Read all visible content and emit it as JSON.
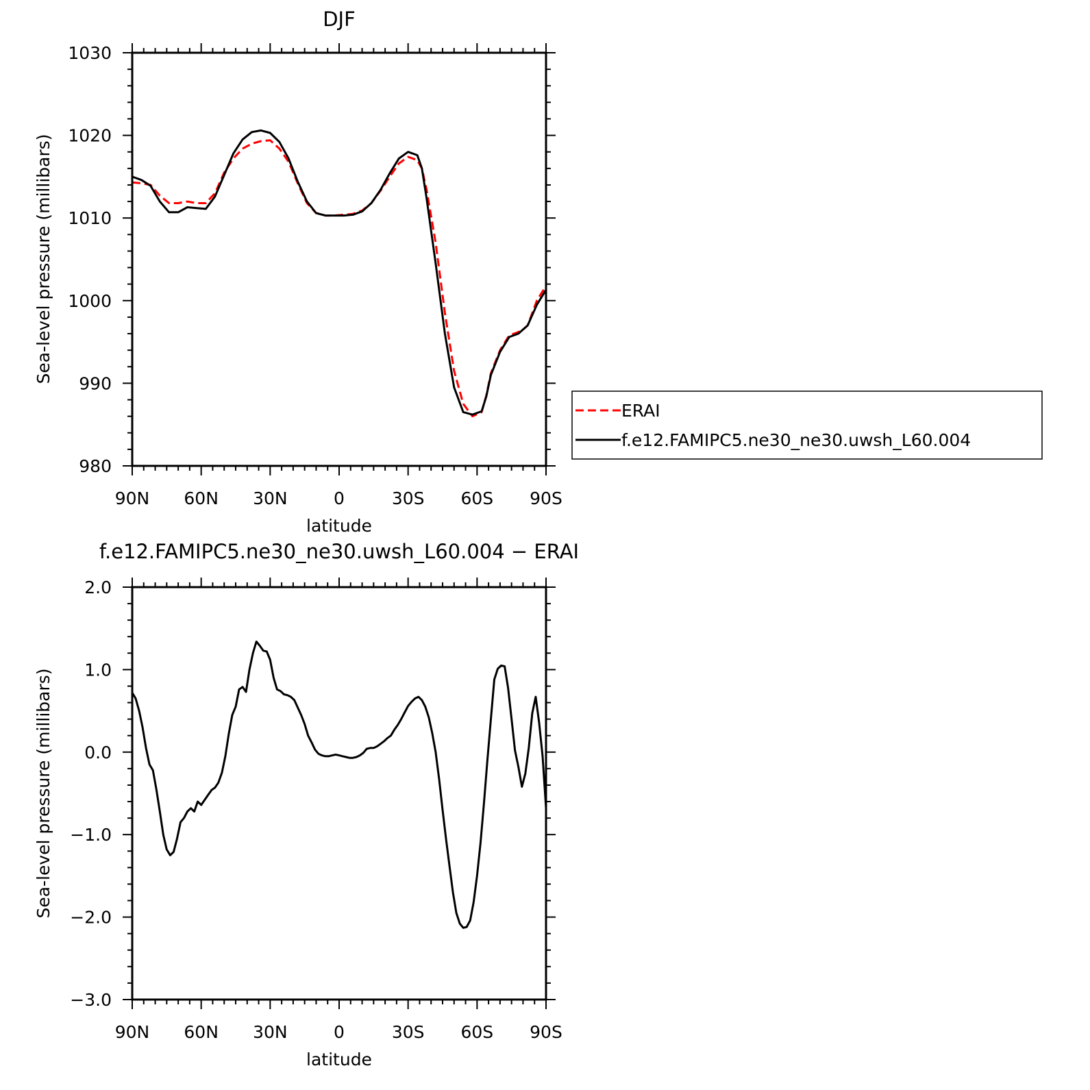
{
  "chart_data": [
    {
      "type": "line",
      "title": "DJF",
      "xlabel": "latitude",
      "ylabel": "Sea-level pressure (millibars)",
      "xlim": [
        90,
        -90
      ],
      "ylim": [
        980,
        1030
      ],
      "xticks": [
        {
          "value": 90,
          "label": "90N"
        },
        {
          "value": 60,
          "label": "60N"
        },
        {
          "value": 30,
          "label": "30N"
        },
        {
          "value": 0,
          "label": "0"
        },
        {
          "value": -30,
          "label": "30S"
        },
        {
          "value": -60,
          "label": "60S"
        },
        {
          "value": -90,
          "label": "90S"
        }
      ],
      "yticks": [
        {
          "value": 980,
          "label": "980"
        },
        {
          "value": 990,
          "label": "990"
        },
        {
          "value": 1000,
          "label": "1000"
        },
        {
          "value": 1010,
          "label": "1010"
        },
        {
          "value": 1020,
          "label": "1020"
        },
        {
          "value": 1030,
          "label": "1030"
        }
      ],
      "legend_position": "right",
      "series": [
        {
          "name": "ERAI",
          "color": "#ff0000",
          "style": "dashed",
          "x": [
            90,
            86,
            82,
            78,
            74,
            70,
            66,
            62,
            58,
            54,
            50,
            46,
            42,
            38,
            34,
            30,
            26,
            22,
            18,
            14,
            10,
            6,
            2,
            -2,
            -6,
            -10,
            -14,
            -18,
            -22,
            -26,
            -30,
            -34,
            -36,
            -38,
            -42,
            -46,
            -50,
            -54,
            -58,
            -62,
            -64,
            -66,
            -70,
            -74,
            -78,
            -80,
            -82,
            -86,
            -90
          ],
          "y": [
            1014.3,
            1014.2,
            1014.0,
            1012.7,
            1011.8,
            1011.8,
            1012.0,
            1011.8,
            1011.8,
            1013.0,
            1015.5,
            1017.2,
            1018.4,
            1019.0,
            1019.3,
            1019.4,
            1018.4,
            1016.8,
            1014.2,
            1011.8,
            1010.6,
            1010.3,
            1010.3,
            1010.4,
            1010.5,
            1010.9,
            1011.8,
            1013.3,
            1015.0,
            1016.6,
            1017.4,
            1017.0,
            1016.0,
            1013.5,
            1007.0,
            998.5,
            991.5,
            987.5,
            986.0,
            986.5,
            988.5,
            991.2,
            994.0,
            995.8,
            996.2,
            996.5,
            997.0,
            1000.0,
            1001.8
          ]
        },
        {
          "name": "f.e12.FAMIPC5.ne30_ne30.uwsh_L60.004",
          "color": "#000000",
          "style": "solid",
          "x": [
            90,
            86,
            82,
            78,
            74,
            70,
            66,
            62,
            58,
            54,
            50,
            46,
            42,
            38,
            34,
            30,
            26,
            22,
            18,
            14,
            10,
            6,
            2,
            -2,
            -6,
            -10,
            -14,
            -18,
            -22,
            -26,
            -30,
            -34,
            -36,
            -38,
            -42,
            -46,
            -50,
            -54,
            -58,
            -62,
            -64,
            -66,
            -70,
            -74,
            -78,
            -80,
            -82,
            -86,
            -90
          ],
          "y": [
            1015.0,
            1014.6,
            1013.9,
            1012.0,
            1010.7,
            1010.7,
            1011.3,
            1011.2,
            1011.1,
            1012.6,
            1015.2,
            1017.8,
            1019.5,
            1020.4,
            1020.6,
            1020.3,
            1019.2,
            1017.2,
            1014.4,
            1012.0,
            1010.6,
            1010.3,
            1010.3,
            1010.3,
            1010.4,
            1010.8,
            1011.8,
            1013.4,
            1015.4,
            1017.2,
            1018.0,
            1017.6,
            1016.0,
            1012.5,
            1004.5,
            996.0,
            989.5,
            986.5,
            986.2,
            986.6,
            988.4,
            991.0,
            993.8,
            995.6,
            996.0,
            996.5,
            997.0,
            999.5,
            1001.3
          ]
        }
      ]
    },
    {
      "type": "line",
      "title": "f.e12.FAMIPC5.ne30_ne30.uwsh_L60.004 − ERAI",
      "xlabel": "latitude",
      "ylabel": "Sea-level pressure (millibars)",
      "xlim": [
        90,
        -90
      ],
      "ylim": [
        -3.0,
        2.0
      ],
      "xticks": [
        {
          "value": 90,
          "label": "90N"
        },
        {
          "value": 60,
          "label": "60N"
        },
        {
          "value": 30,
          "label": "30N"
        },
        {
          "value": 0,
          "label": "0"
        },
        {
          "value": -30,
          "label": "30S"
        },
        {
          "value": -60,
          "label": "60S"
        },
        {
          "value": -90,
          "label": "90S"
        }
      ],
      "yticks": [
        {
          "value": -3.0,
          "label": "−3.0"
        },
        {
          "value": -2.0,
          "label": "−2.0"
        },
        {
          "value": -1.0,
          "label": "−1.0"
        },
        {
          "value": 0.0,
          "label": "0.0"
        },
        {
          "value": 1.0,
          "label": "1.0"
        },
        {
          "value": 2.0,
          "label": "2.0"
        }
      ],
      "series": [
        {
          "color": "#000000",
          "style": "solid",
          "x": [
            90,
            88.5,
            87,
            85.5,
            84,
            82.5,
            81,
            79.5,
            78,
            76.5,
            75,
            73.5,
            72,
            70.5,
            69,
            67.5,
            66,
            64.5,
            63,
            61.5,
            60,
            58.5,
            57,
            55.5,
            54,
            52.5,
            51,
            49.5,
            48,
            46.5,
            45,
            43.5,
            42,
            40.5,
            39,
            37.5,
            36,
            34.5,
            33,
            31.5,
            30,
            28.5,
            27,
            25.5,
            24,
            22.5,
            21,
            19.5,
            18,
            16.5,
            15,
            13.5,
            12,
            10.5,
            9,
            7.5,
            6,
            4.5,
            3,
            1.5,
            0,
            -1.5,
            -3,
            -4.5,
            -6,
            -7.5,
            -9,
            -10.5,
            -12,
            -13.5,
            -15,
            -16.5,
            -18,
            -19.5,
            -21,
            -22.5,
            -24,
            -25.5,
            -27,
            -28.5,
            -30,
            -31.5,
            -33,
            -34.5,
            -36,
            -37.5,
            -39,
            -40.5,
            -42,
            -43.5,
            -45,
            -46.5,
            -48,
            -49.5,
            -51,
            -52.5,
            -54,
            -55.5,
            -57,
            -58.5,
            -60,
            -61.5,
            -63,
            -64.5,
            -66,
            -67.5,
            -69,
            -70.5,
            -72,
            -73.5,
            -75,
            -76.5,
            -78,
            -79.5,
            -81,
            -82.5,
            -84,
            -85.5,
            -87,
            -88.5,
            -90
          ],
          "y": [
            0.72,
            0.65,
            0.5,
            0.3,
            0.05,
            -0.15,
            -0.22,
            -0.45,
            -0.72,
            -1.0,
            -1.18,
            -1.25,
            -1.21,
            -1.05,
            -0.85,
            -0.8,
            -0.72,
            -0.68,
            -0.72,
            -0.6,
            -0.64,
            -0.58,
            -0.52,
            -0.46,
            -0.43,
            -0.37,
            -0.25,
            -0.05,
            0.22,
            0.45,
            0.55,
            0.76,
            0.79,
            0.73,
            1.0,
            1.2,
            1.34,
            1.29,
            1.23,
            1.22,
            1.12,
            0.9,
            0.76,
            0.74,
            0.7,
            0.69,
            0.67,
            0.63,
            0.54,
            0.45,
            0.34,
            0.2,
            0.12,
            0.03,
            -0.02,
            -0.04,
            -0.05,
            -0.05,
            -0.04,
            -0.03,
            -0.04,
            -0.05,
            -0.06,
            -0.07,
            -0.07,
            -0.06,
            -0.04,
            -0.01,
            0.04,
            0.05,
            0.05,
            0.07,
            0.1,
            0.13,
            0.17,
            0.2,
            0.27,
            0.33,
            0.4,
            0.48,
            0.56,
            0.61,
            0.65,
            0.67,
            0.63,
            0.55,
            0.42,
            0.23,
            0.0,
            -0.33,
            -0.7,
            -1.05,
            -1.38,
            -1.7,
            -1.95,
            -2.08,
            -2.13,
            -2.12,
            -2.04,
            -1.82,
            -1.5,
            -1.1,
            -0.62,
            -0.1,
            0.4,
            0.88,
            1.01,
            1.05,
            1.04,
            0.78,
            0.4,
            0.02,
            -0.18,
            -0.42,
            -0.26,
            0.05,
            0.47,
            0.67,
            0.36,
            -0.05,
            -0.68
          ]
        }
      ]
    }
  ],
  "legend": {
    "entries": [
      {
        "label": "ERAI",
        "color": "#ff0000",
        "style": "dashed"
      },
      {
        "label": "f.e12.FAMIPC5.ne30_ne30.uwsh_L60.004",
        "color": "#000000",
        "style": "solid"
      }
    ]
  }
}
